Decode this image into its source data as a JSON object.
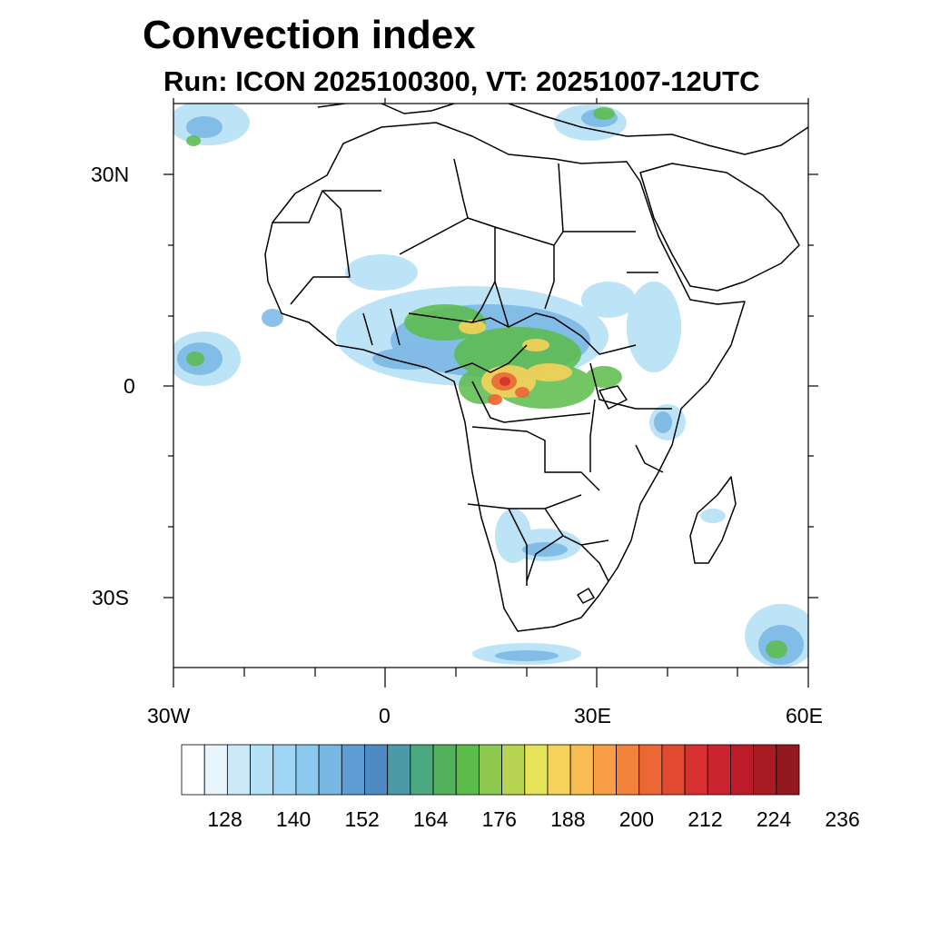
{
  "title": "Convection index",
  "subtitle": "Run: ICON 2025100300,  VT: 20251007-12UTC",
  "map": {
    "lon_range": [
      -30,
      60
    ],
    "lat_range": [
      -40,
      40
    ],
    "lat_labels": [
      "30N",
      "0",
      "30S"
    ],
    "lon_labels": [
      "30W",
      "0",
      "30E",
      "60E"
    ]
  },
  "colorbar": {
    "labels": [
      "128",
      "140",
      "152",
      "164",
      "176",
      "188",
      "200",
      "212",
      "224",
      "236"
    ],
    "colors": [
      "#ffffff",
      "#e8f4fc",
      "#cce9f8",
      "#b6e0f6",
      "#a0d6f4",
      "#8bc8ee",
      "#78b6e4",
      "#5f9cd4",
      "#4f8ac4",
      "#4a9aa8",
      "#4ca87e",
      "#52b25c",
      "#5cbc4a",
      "#8ec850",
      "#b6d452",
      "#e6e25a",
      "#f6d25a",
      "#f8bc52",
      "#f89e44",
      "#f2823c",
      "#ec6636",
      "#e24a30",
      "#d83030",
      "#cc2430",
      "#bc1c2a",
      "#a81a24",
      "#921a1e"
    ]
  },
  "colors": {
    "outline": "#000000"
  }
}
